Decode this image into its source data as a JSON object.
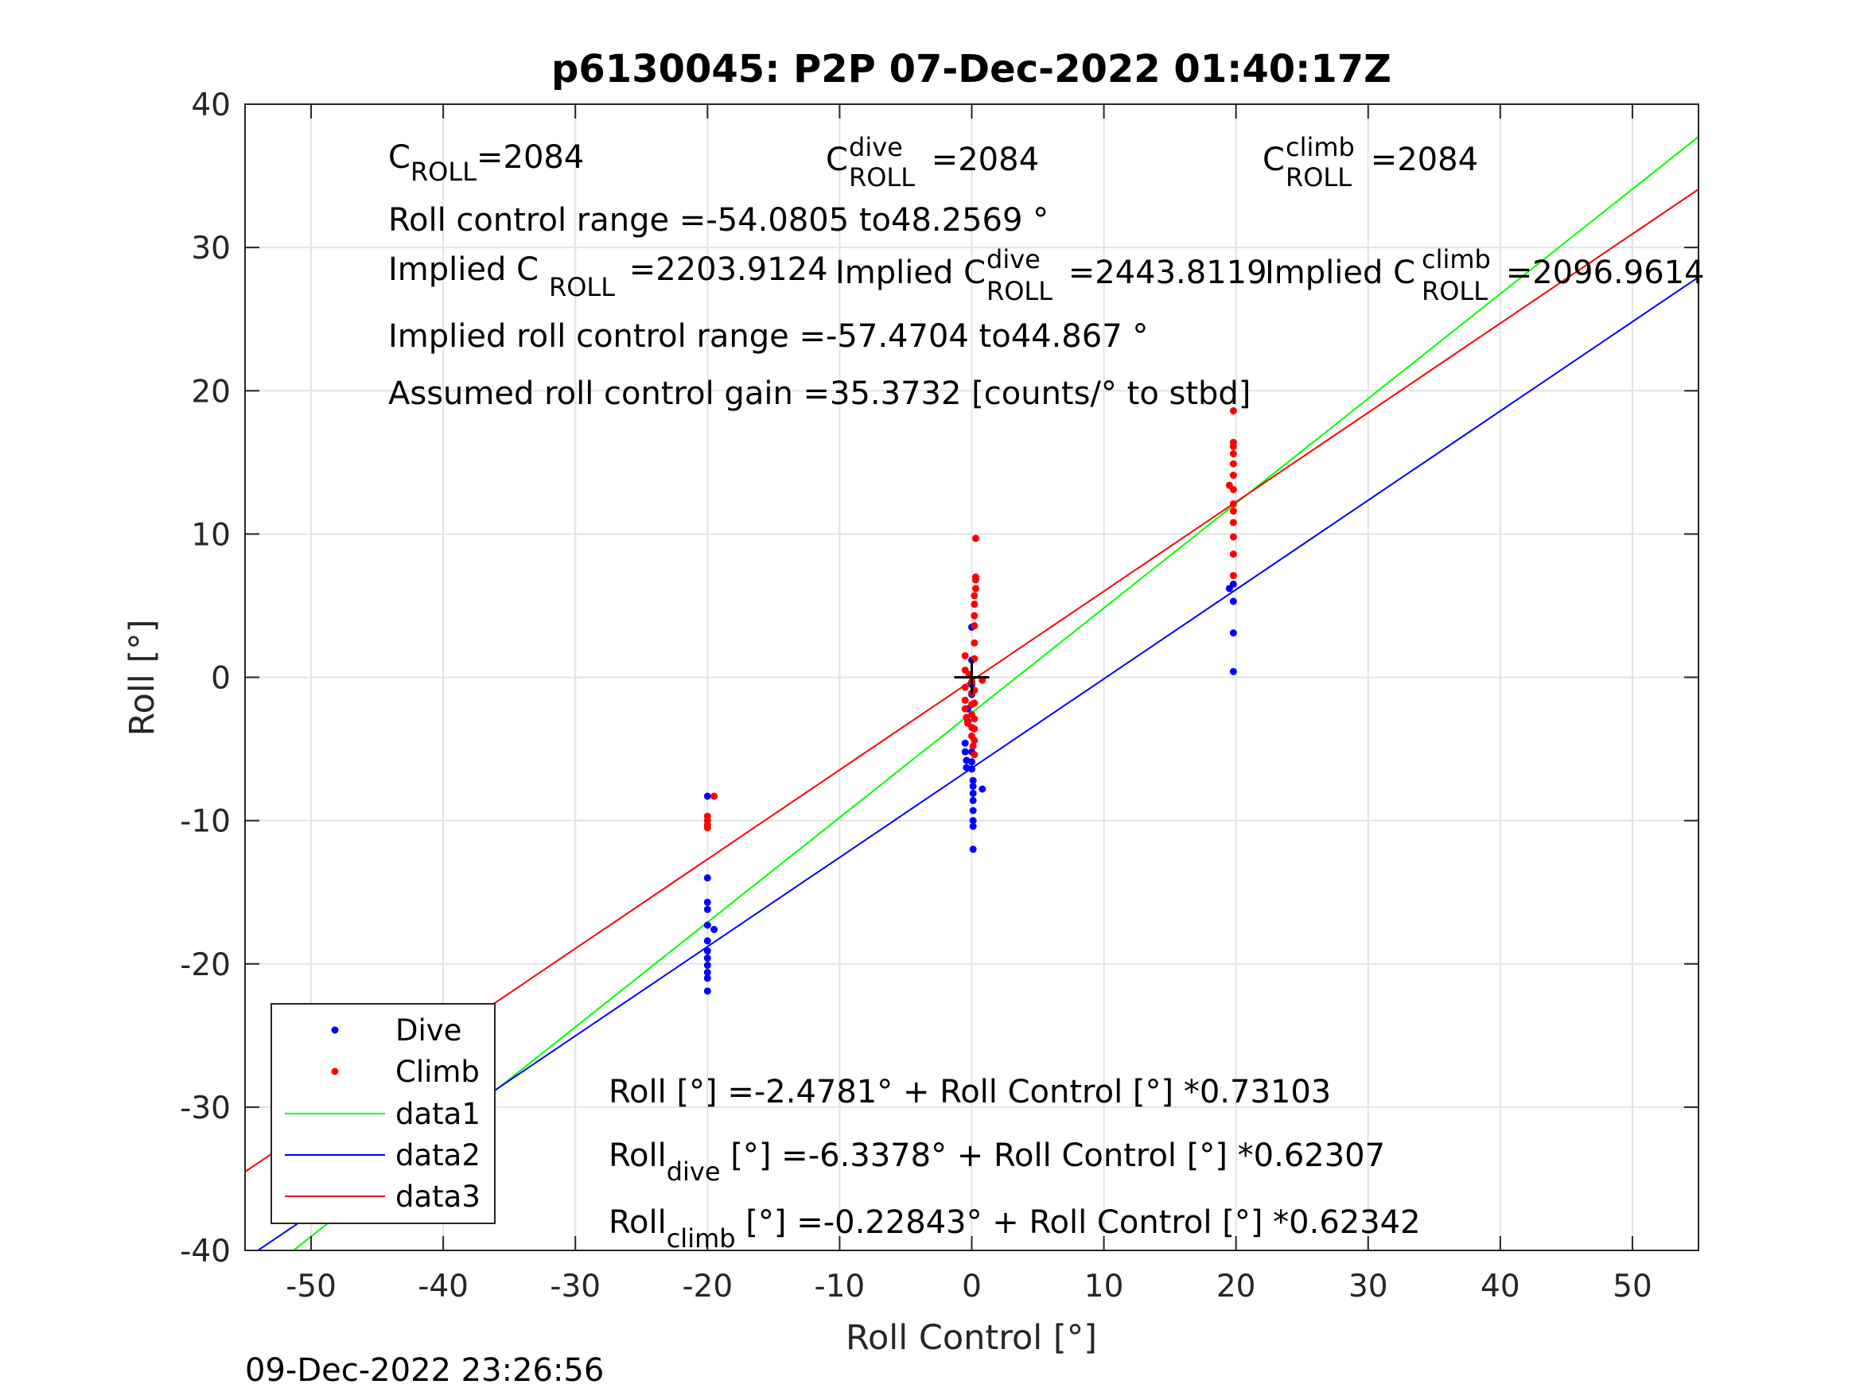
{
  "chart_data": {
    "type": "scatter",
    "title": "p6130045: P2P 07-Dec-2022 01:40:17Z",
    "xlabel": "Roll Control [°]",
    "ylabel": "Roll [°]",
    "xlim": [
      -55,
      55
    ],
    "ylim": [
      -40,
      40
    ],
    "xticks": [
      "-50",
      "-40",
      "-30",
      "-20",
      "-10",
      "0",
      "10",
      "20",
      "30",
      "40",
      "50"
    ],
    "yticks": [
      "40",
      "30",
      "20",
      "10",
      "0",
      "-10",
      "-20",
      "-30",
      "-40"
    ],
    "grid": true,
    "legend_position": "bottom-left",
    "timestamp": "09-Dec-2022 23:26:56",
    "series": [
      {
        "name": "Dive",
        "kind": "points",
        "color": "#0000ff",
        "points": [
          [
            -20,
            -8.3
          ],
          [
            -20,
            -14
          ],
          [
            -20,
            -15.7
          ],
          [
            -20,
            -16.2
          ],
          [
            -20,
            -17.3
          ],
          [
            -20,
            -18.4
          ],
          [
            -20,
            -19.1
          ],
          [
            -20,
            -19.6
          ],
          [
            -20,
            -20.1
          ],
          [
            -20,
            -20.6
          ],
          [
            -20,
            -21
          ],
          [
            -20,
            -21.9
          ],
          [
            -19.5,
            -17.6
          ],
          [
            -0.5,
            -4.6
          ],
          [
            -0.5,
            -5.2
          ],
          [
            -0.4,
            -5.8
          ],
          [
            -0.4,
            -6.3
          ],
          [
            -0.3,
            -2.2
          ],
          [
            -0.3,
            -3.1
          ],
          [
            0,
            3.5
          ],
          [
            0,
            1.2
          ],
          [
            0,
            -0.5
          ],
          [
            0,
            -1.2
          ],
          [
            0,
            -5.2
          ],
          [
            0,
            -5.9
          ],
          [
            0,
            -6.4
          ],
          [
            0.1,
            -7.2
          ],
          [
            0.1,
            -7.6
          ],
          [
            0.1,
            -8.1
          ],
          [
            0.1,
            -8.6
          ],
          [
            0.1,
            -9.3
          ],
          [
            0.1,
            -10
          ],
          [
            0.1,
            -10.4
          ],
          [
            0.1,
            -12
          ],
          [
            0.8,
            -7.8
          ],
          [
            19.5,
            6.2
          ],
          [
            19.8,
            0.4
          ],
          [
            19.8,
            3.1
          ],
          [
            19.8,
            5.3
          ],
          [
            19.8,
            6.5
          ]
        ]
      },
      {
        "name": "Climb",
        "kind": "points",
        "color": "#ff0000",
        "points": [
          [
            -20,
            -9.7
          ],
          [
            -20,
            -10
          ],
          [
            -20,
            -10.3
          ],
          [
            -20,
            -10.5
          ],
          [
            -19.5,
            -8.3
          ],
          [
            -0.5,
            1.5
          ],
          [
            -0.5,
            0.5
          ],
          [
            -0.5,
            -0.7
          ],
          [
            -0.5,
            -1.6
          ],
          [
            -0.5,
            -2.2
          ],
          [
            -0.4,
            -2.8
          ],
          [
            -0.3,
            -3.2
          ],
          [
            -0.2,
            0.2
          ],
          [
            0,
            -0.3
          ],
          [
            0,
            -1.1
          ],
          [
            0,
            -1.9
          ],
          [
            0,
            -2.6
          ],
          [
            0,
            -3.5
          ],
          [
            0,
            -4.1
          ],
          [
            0.1,
            -4.8
          ],
          [
            0.2,
            -5.4
          ],
          [
            0.2,
            -4.4
          ],
          [
            0.2,
            -3.6
          ],
          [
            0.2,
            -2.9
          ],
          [
            0.2,
            -1.8
          ],
          [
            0.2,
            -0.9
          ],
          [
            0.2,
            1.3
          ],
          [
            0.2,
            2.4
          ],
          [
            0.2,
            3.6
          ],
          [
            0.2,
            4.3
          ],
          [
            0.2,
            5.1
          ],
          [
            0.2,
            5.7
          ],
          [
            0.3,
            6.2
          ],
          [
            0.3,
            6.8
          ],
          [
            0.3,
            7
          ],
          [
            0.3,
            9.7
          ],
          [
            0.8,
            -0.2
          ],
          [
            19.5,
            13.4
          ],
          [
            19.8,
            7.1
          ],
          [
            19.8,
            8.6
          ],
          [
            19.8,
            9.8
          ],
          [
            19.8,
            10.8
          ],
          [
            19.8,
            11.6
          ],
          [
            19.8,
            12.1
          ],
          [
            19.8,
            13.1
          ],
          [
            19.8,
            14.1
          ],
          [
            19.8,
            14.9
          ],
          [
            19.8,
            15.6
          ],
          [
            19.8,
            16.1
          ],
          [
            19.8,
            16.4
          ],
          [
            19.8,
            18.6
          ]
        ]
      },
      {
        "name": "data1",
        "kind": "line",
        "color": "#00ff00",
        "intercept": -2.4781,
        "slope": 0.73103
      },
      {
        "name": "data2",
        "kind": "line",
        "color": "#0000ff",
        "intercept": -6.3378,
        "slope": 0.62307
      },
      {
        "name": "data3",
        "kind": "line",
        "color": "#ff0000",
        "intercept": -0.22843,
        "slope": 0.62342
      }
    ],
    "marker": {
      "x": 0,
      "y": 0,
      "color": "#000000"
    },
    "annotations": {
      "c_roll": {
        "base": "C",
        "sub": "ROLL",
        "value": "=2084"
      },
      "c_roll_dive": {
        "base": "C",
        "sup": "dive",
        "sub": "ROLL",
        "value": " =2084"
      },
      "c_roll_climb": {
        "base": "C",
        "sup": "climb",
        "sub": "ROLL",
        "value": " =2084"
      },
      "roll_control_range": "Roll control range =-54.0805 to48.2569 °",
      "implied_c_roll": {
        "base": "Implied C",
        "sub": "ROLL",
        "value": " =2203.9124"
      },
      "implied_c_roll_dive": {
        "base": "Implied C",
        "sup": "dive",
        "sub": "ROLL",
        "value": " =2443.8119"
      },
      "implied_c_roll_climb": {
        "base": "Implied C",
        "sup": "climb",
        "sub": "ROLL",
        "value": " =2096.9614"
      },
      "implied_range": "Implied roll control range =-57.4704 to44.867 °",
      "gain": "Assumed roll control gain =35.3732 [counts/° to stbd]",
      "fit_all": "Roll [°] =-2.4781° + Roll Control [°] *0.73103",
      "fit_dive": {
        "base": "Roll",
        "sub": "dive",
        "rest": " [°] =-6.3378° + Roll Control [°] *0.62307"
      },
      "fit_climb": {
        "base": "Roll",
        "sub": "climb",
        "rest": " [°] =-0.22843° + Roll Control [°] *0.62342"
      }
    }
  }
}
